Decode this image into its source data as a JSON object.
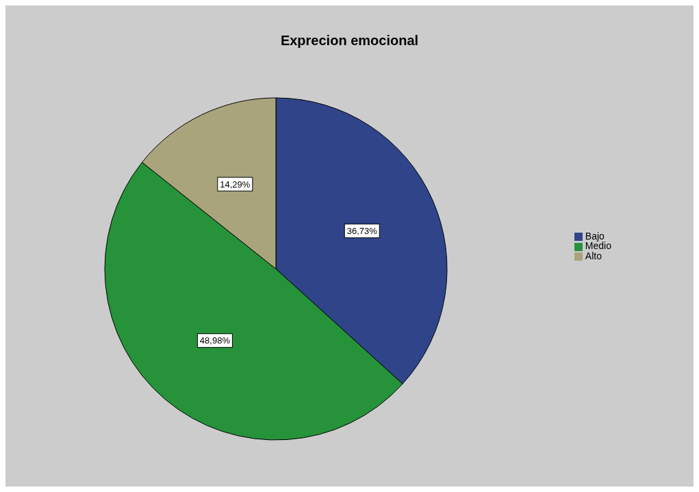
{
  "chart_data": {
    "type": "pie",
    "title": "Exprecion emocional",
    "categories": [
      "Bajo",
      "Medio",
      "Alto"
    ],
    "values": [
      36.73,
      48.98,
      14.29
    ],
    "colors": [
      "#2f4489",
      "#26923a",
      "#a9a47c"
    ],
    "value_labels": [
      "36,73%",
      "48,98%",
      "14,29%"
    ],
    "legend": "right"
  }
}
